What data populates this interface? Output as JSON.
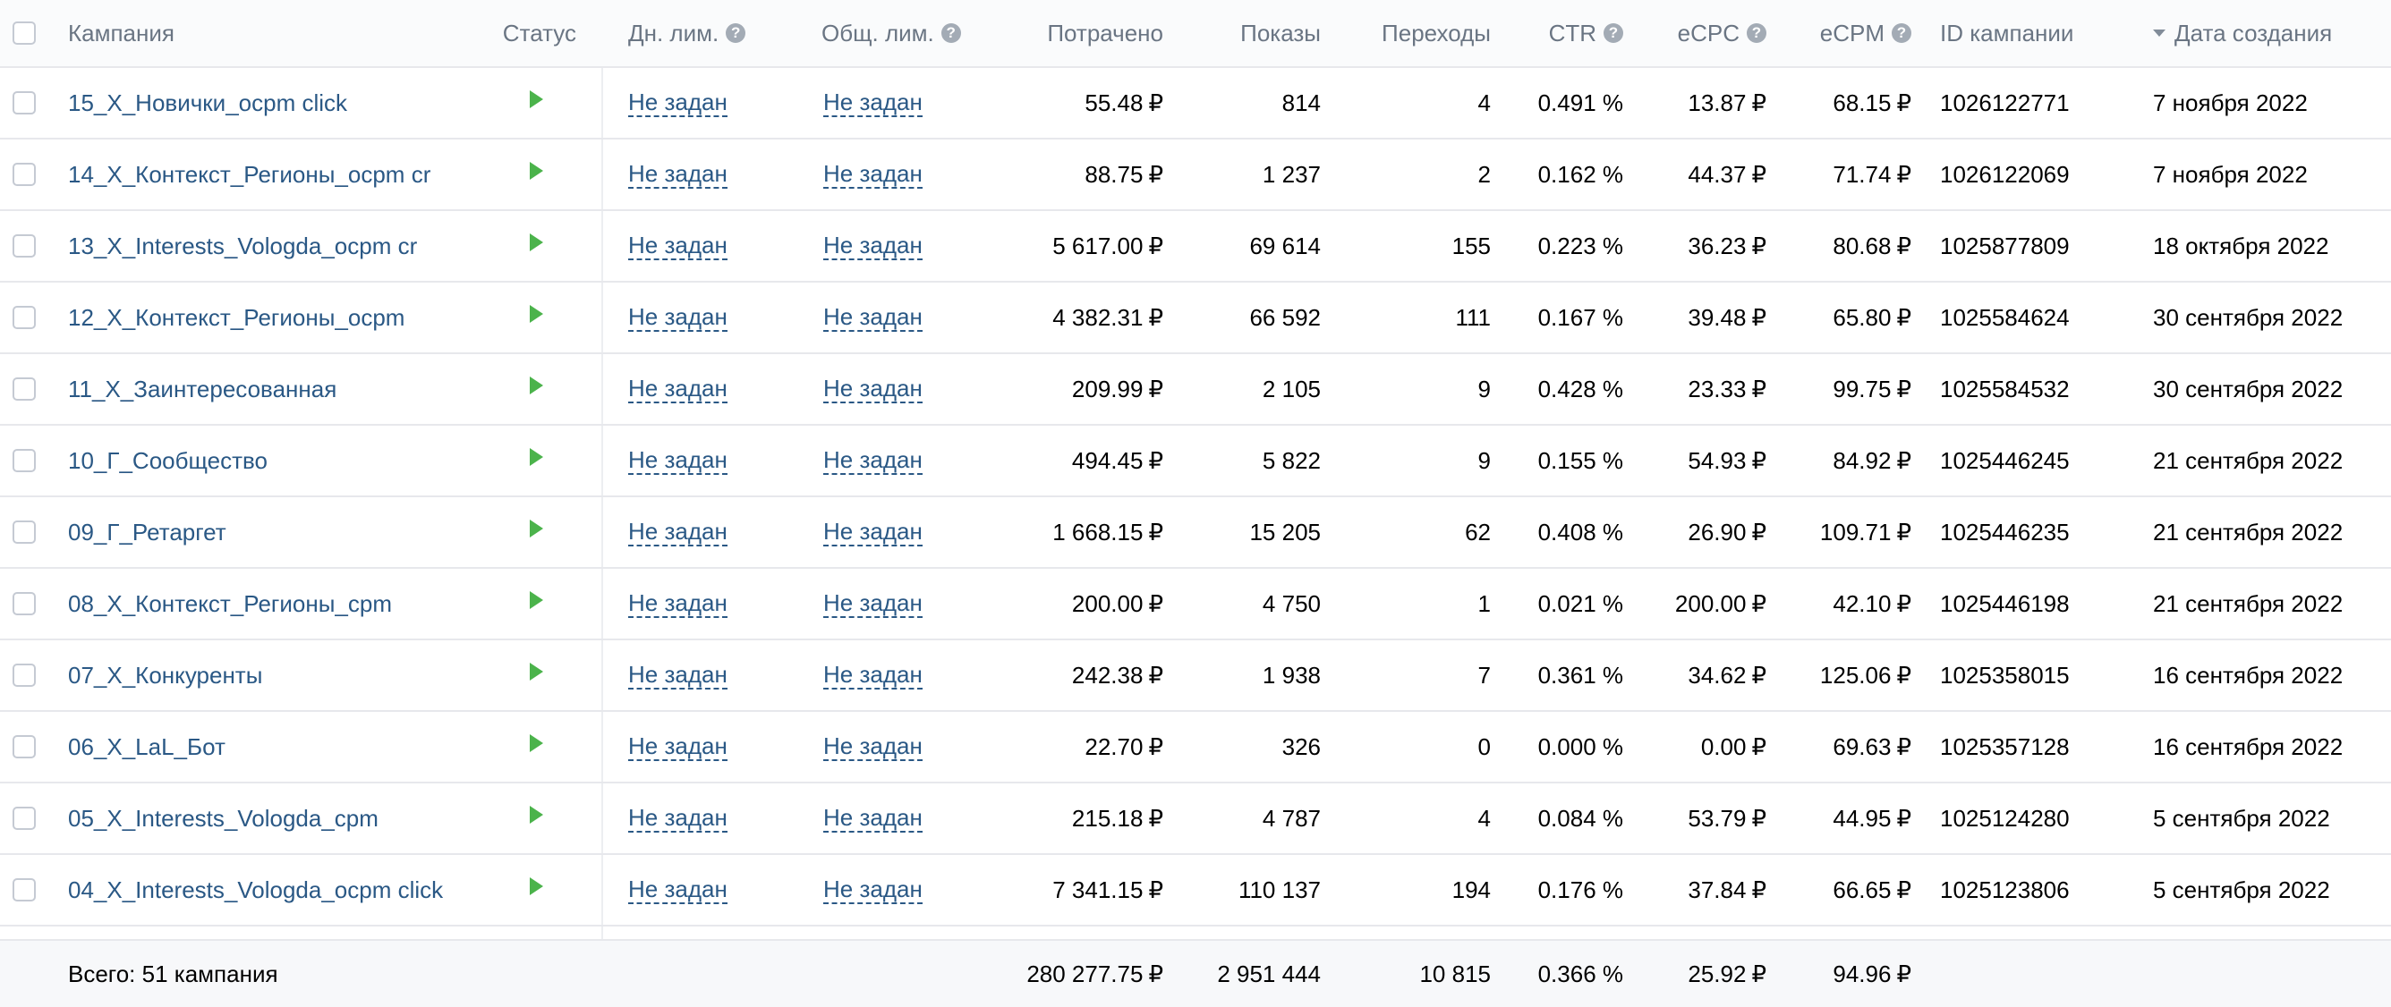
{
  "header": {
    "campaign": "Кампания",
    "status": "Статус",
    "daily_limit": "Дн. лим.",
    "total_limit": "Общ. лим.",
    "spent": "Потрачено",
    "impressions": "Показы",
    "clicks": "Переходы",
    "ctr": "CTR",
    "ecpc": "eCPC",
    "ecpm": "eCPM",
    "campaign_id": "ID кампании",
    "created": "Дата создания",
    "help_glyph": "?"
  },
  "currency": "₽",
  "rows": [
    {
      "name": "15_X_Новички_ocpm click",
      "daily": "Не задан",
      "total": "Не задан",
      "spent": "55.48",
      "shows": "814",
      "clicks": "4",
      "ctr": "0.491 %",
      "ecpc": "13.87",
      "ecpm": "68.15",
      "id": "1026122771",
      "date": "7 ноября 2022"
    },
    {
      "name": "14_X_Контекст_Регионы_ocpm cr",
      "daily": "Не задан",
      "total": "Не задан",
      "spent": "88.75",
      "shows": "1 237",
      "clicks": "2",
      "ctr": "0.162 %",
      "ecpc": "44.37",
      "ecpm": "71.74",
      "id": "1026122069",
      "date": "7 ноября 2022"
    },
    {
      "name": "13_X_Interests_Vologda_ocpm cr",
      "daily": "Не задан",
      "total": "Не задан",
      "spent": "5 617.00",
      "shows": "69 614",
      "clicks": "155",
      "ctr": "0.223 %",
      "ecpc": "36.23",
      "ecpm": "80.68",
      "id": "1025877809",
      "date": "18 октября 2022"
    },
    {
      "name": "12_X_Контекст_Регионы_ocpm",
      "daily": "Не задан",
      "total": "Не задан",
      "spent": "4 382.31",
      "shows": "66 592",
      "clicks": "111",
      "ctr": "0.167 %",
      "ecpc": "39.48",
      "ecpm": "65.80",
      "id": "1025584624",
      "date": "30 сентября 2022"
    },
    {
      "name": "11_X_Заинтересованная",
      "daily": "Не задан",
      "total": "Не задан",
      "spent": "209.99",
      "shows": "2 105",
      "clicks": "9",
      "ctr": "0.428 %",
      "ecpc": "23.33",
      "ecpm": "99.75",
      "id": "1025584532",
      "date": "30 сентября 2022"
    },
    {
      "name": "10_Г_Сообщество",
      "daily": "Не задан",
      "total": "Не задан",
      "spent": "494.45",
      "shows": "5 822",
      "clicks": "9",
      "ctr": "0.155 %",
      "ecpc": "54.93",
      "ecpm": "84.92",
      "id": "1025446245",
      "date": "21 сентября 2022"
    },
    {
      "name": "09_Г_Ретаргет",
      "daily": "Не задан",
      "total": "Не задан",
      "spent": "1 668.15",
      "shows": "15 205",
      "clicks": "62",
      "ctr": "0.408 %",
      "ecpc": "26.90",
      "ecpm": "109.71",
      "id": "1025446235",
      "date": "21 сентября 2022"
    },
    {
      "name": "08_X_Контекст_Регионы_cpm",
      "daily": "Не задан",
      "total": "Не задан",
      "spent": "200.00",
      "shows": "4 750",
      "clicks": "1",
      "ctr": "0.021 %",
      "ecpc": "200.00",
      "ecpm": "42.10",
      "id": "1025446198",
      "date": "21 сентября 2022"
    },
    {
      "name": "07_X_Конкуренты",
      "daily": "Не задан",
      "total": "Не задан",
      "spent": "242.38",
      "shows": "1 938",
      "clicks": "7",
      "ctr": "0.361 %",
      "ecpc": "34.62",
      "ecpm": "125.06",
      "id": "1025358015",
      "date": "16 сентября 2022"
    },
    {
      "name": "06_X_LaL_Бот",
      "daily": "Не задан",
      "total": "Не задан",
      "spent": "22.70",
      "shows": "326",
      "clicks": "0",
      "ctr": "0.000 %",
      "ecpc": "0.00",
      "ecpm": "69.63",
      "id": "1025357128",
      "date": "16 сентября 2022"
    },
    {
      "name": "05_X_Interests_Vologda_cpm",
      "daily": "Не задан",
      "total": "Не задан",
      "spent": "215.18",
      "shows": "4 787",
      "clicks": "4",
      "ctr": "0.084 %",
      "ecpc": "53.79",
      "ecpm": "44.95",
      "id": "1025124280",
      "date": "5 сентября 2022"
    },
    {
      "name": "04_X_Interests_Vologda_ocpm click",
      "daily": "Не задан",
      "total": "Не задан",
      "spent": "7 341.15",
      "shows": "110 137",
      "clicks": "194",
      "ctr": "0.176 %",
      "ecpc": "37.84",
      "ecpm": "66.65",
      "id": "1025123806",
      "date": "5 сентября 2022"
    }
  ],
  "totals": {
    "label": "Всего: 51 кампания",
    "spent": "280 277.75",
    "shows": "2 951 444",
    "clicks": "10 815",
    "ctr": "0.366 %",
    "ecpc": "25.92",
    "ecpm": "94.96"
  },
  "colors": {
    "link": "#2a5885",
    "play": "#4bb34b",
    "header_text": "#6a7583"
  },
  "icons": {
    "status": "play-icon",
    "sort": "sort-desc-icon",
    "help": "help-icon"
  }
}
